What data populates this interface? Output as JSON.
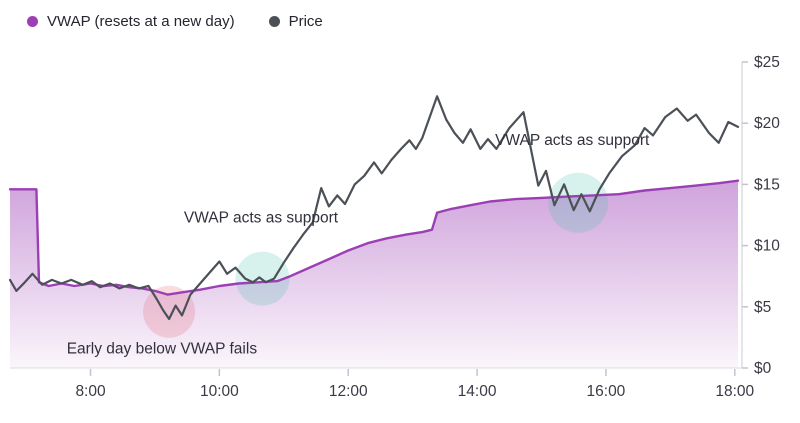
{
  "legend": {
    "items": [
      {
        "label": "VWAP (resets at a new day)",
        "color": "#9c3fb5",
        "marker": "dot"
      },
      {
        "label": "Price",
        "color": "#4b5157",
        "marker": "dot"
      }
    ]
  },
  "chart_data": {
    "type": "line",
    "title": "",
    "xlabel": "",
    "ylabel": "",
    "grid": false,
    "legend_position": "top-left",
    "xlim": [
      6.75,
      18.05
    ],
    "ylim": [
      0,
      25
    ],
    "x_ticks": [
      {
        "value": 8,
        "label": "8:00"
      },
      {
        "value": 10,
        "label": "10:00"
      },
      {
        "value": 12,
        "label": "12:00"
      },
      {
        "value": 14,
        "label": "14:00"
      },
      {
        "value": 16,
        "label": "16:00"
      },
      {
        "value": 18,
        "label": "18:00"
      }
    ],
    "y_ticks": [
      {
        "value": 0,
        "label": "$0"
      },
      {
        "value": 5,
        "label": "$5"
      },
      {
        "value": 10,
        "label": "$10"
      },
      {
        "value": 15,
        "label": "$15"
      },
      {
        "value": 20,
        "label": "$20"
      },
      {
        "value": 25,
        "label": "$25"
      }
    ],
    "colors": {
      "axis_text": "#3a3a45",
      "axis_line": "#dcdce4",
      "tick": "#c3c3cd",
      "annotation_text": "#31313d",
      "background": "#ffffff"
    },
    "series": [
      {
        "name": "VWAP (resets at a new day)",
        "color": "#9c3fb5",
        "style": "area-line",
        "points": [
          [
            6.75,
            14.6
          ],
          [
            7.16,
            14.6
          ],
          [
            7.2,
            7.0
          ],
          [
            7.35,
            6.7
          ],
          [
            7.55,
            6.9
          ],
          [
            7.75,
            6.7
          ],
          [
            8.0,
            6.9
          ],
          [
            8.2,
            6.7
          ],
          [
            8.4,
            6.8
          ],
          [
            8.6,
            6.6
          ],
          [
            8.8,
            6.5
          ],
          [
            9.0,
            6.3
          ],
          [
            9.2,
            6.0
          ],
          [
            9.45,
            6.2
          ],
          [
            9.7,
            6.4
          ],
          [
            10.0,
            6.7
          ],
          [
            10.3,
            6.9
          ],
          [
            10.6,
            7.0
          ],
          [
            10.9,
            7.1
          ],
          [
            11.1,
            7.5
          ],
          [
            11.4,
            8.2
          ],
          [
            11.7,
            8.9
          ],
          [
            12.0,
            9.6
          ],
          [
            12.3,
            10.2
          ],
          [
            12.6,
            10.6
          ],
          [
            12.9,
            10.9
          ],
          [
            13.15,
            11.1
          ],
          [
            13.3,
            11.3
          ],
          [
            13.38,
            12.7
          ],
          [
            13.6,
            13.0
          ],
          [
            13.9,
            13.3
          ],
          [
            14.2,
            13.6
          ],
          [
            14.6,
            13.8
          ],
          [
            15.0,
            13.9
          ],
          [
            15.4,
            14.0
          ],
          [
            15.8,
            14.1
          ],
          [
            16.2,
            14.2
          ],
          [
            16.6,
            14.5
          ],
          [
            17.0,
            14.7
          ],
          [
            17.4,
            14.9
          ],
          [
            17.75,
            15.1
          ],
          [
            18.05,
            15.3
          ]
        ]
      },
      {
        "name": "Price",
        "color": "#4b5157",
        "style": "line",
        "points": [
          [
            6.75,
            7.2
          ],
          [
            6.85,
            6.3
          ],
          [
            6.98,
            7.0
          ],
          [
            7.1,
            7.7
          ],
          [
            7.25,
            6.8
          ],
          [
            7.4,
            7.2
          ],
          [
            7.55,
            6.9
          ],
          [
            7.7,
            7.2
          ],
          [
            7.88,
            6.8
          ],
          [
            8.02,
            7.1
          ],
          [
            8.15,
            6.6
          ],
          [
            8.3,
            6.9
          ],
          [
            8.45,
            6.5
          ],
          [
            8.6,
            6.8
          ],
          [
            8.75,
            6.5
          ],
          [
            8.9,
            6.7
          ],
          [
            9.02,
            5.7
          ],
          [
            9.13,
            4.7
          ],
          [
            9.22,
            4.0
          ],
          [
            9.32,
            5.1
          ],
          [
            9.42,
            4.3
          ],
          [
            9.55,
            6.0
          ],
          [
            9.7,
            6.9
          ],
          [
            9.85,
            7.8
          ],
          [
            10.0,
            8.7
          ],
          [
            10.12,
            7.7
          ],
          [
            10.25,
            8.2
          ],
          [
            10.4,
            7.3
          ],
          [
            10.52,
            7.0
          ],
          [
            10.62,
            7.4
          ],
          [
            10.72,
            7.0
          ],
          [
            10.85,
            7.3
          ],
          [
            11.0,
            8.6
          ],
          [
            11.15,
            9.8
          ],
          [
            11.3,
            10.9
          ],
          [
            11.45,
            11.9
          ],
          [
            11.58,
            14.7
          ],
          [
            11.7,
            13.2
          ],
          [
            11.83,
            14.1
          ],
          [
            11.95,
            13.4
          ],
          [
            12.1,
            15.0
          ],
          [
            12.25,
            15.7
          ],
          [
            12.4,
            16.8
          ],
          [
            12.52,
            15.9
          ],
          [
            12.67,
            17.0
          ],
          [
            12.82,
            17.9
          ],
          [
            12.95,
            18.6
          ],
          [
            13.05,
            17.9
          ],
          [
            13.15,
            18.8
          ],
          [
            13.38,
            22.2
          ],
          [
            13.52,
            20.3
          ],
          [
            13.65,
            19.2
          ],
          [
            13.78,
            18.4
          ],
          [
            13.9,
            19.5
          ],
          [
            14.05,
            17.9
          ],
          [
            14.17,
            18.7
          ],
          [
            14.3,
            17.9
          ],
          [
            14.5,
            19.6
          ],
          [
            14.72,
            20.9
          ],
          [
            14.95,
            14.9
          ],
          [
            15.07,
            16.1
          ],
          [
            15.2,
            13.3
          ],
          [
            15.35,
            15.0
          ],
          [
            15.5,
            12.9
          ],
          [
            15.62,
            14.2
          ],
          [
            15.75,
            12.8
          ],
          [
            15.9,
            14.6
          ],
          [
            16.05,
            15.9
          ],
          [
            16.25,
            17.3
          ],
          [
            16.45,
            18.2
          ],
          [
            16.6,
            19.6
          ],
          [
            16.73,
            19.0
          ],
          [
            16.92,
            20.5
          ],
          [
            17.1,
            21.2
          ],
          [
            17.27,
            20.2
          ],
          [
            17.4,
            20.7
          ],
          [
            17.6,
            19.2
          ],
          [
            17.75,
            18.4
          ],
          [
            17.9,
            20.1
          ],
          [
            18.05,
            19.7
          ]
        ]
      }
    ],
    "annotations": {
      "labels": [
        {
          "text": "Early day below VWAP fails",
          "x": 7.63,
          "y": 1.2
        },
        {
          "text": "VWAP acts as support",
          "x": 9.45,
          "y": 11.9
        },
        {
          "text": "VWAP acts as support",
          "x": 14.28,
          "y": 18.2
        }
      ],
      "circles": [
        {
          "x": 9.22,
          "y": 4.6,
          "r": 26,
          "color": "#e2606f"
        },
        {
          "x": 10.67,
          "y": 7.3,
          "r": 27,
          "color": "#49bfae"
        },
        {
          "x": 15.57,
          "y": 13.5,
          "r": 30,
          "color": "#49bfae"
        }
      ]
    }
  }
}
